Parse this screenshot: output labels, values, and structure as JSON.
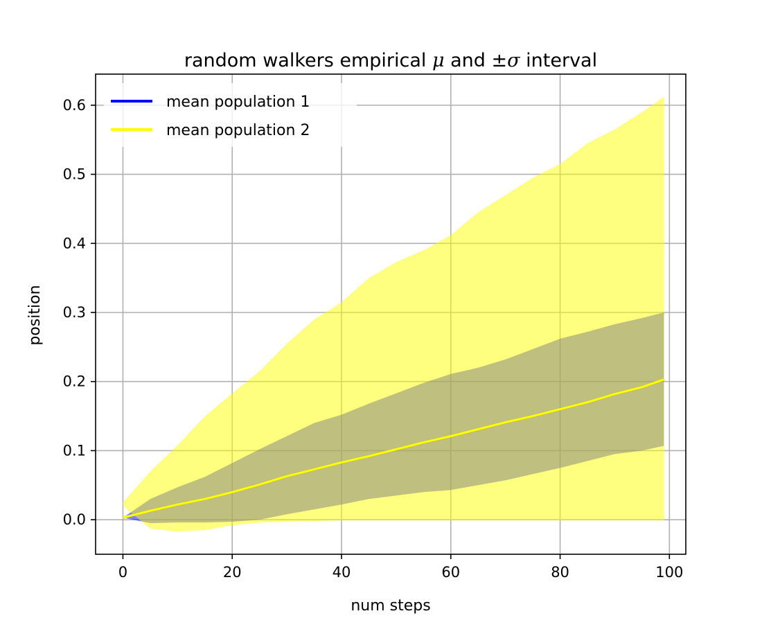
{
  "chart_data": {
    "type": "area",
    "title": {
      "prefix": "random walkers empirical ",
      "mu": "μ",
      "middle": " and ±",
      "sigma": "σ",
      "suffix": " interval"
    },
    "xlabel": "num steps",
    "ylabel": "position",
    "xlim": [
      -5,
      103
    ],
    "ylim": [
      -0.05,
      0.645
    ],
    "xticks": [
      0,
      20,
      40,
      60,
      80,
      100
    ],
    "xtick_labels": [
      "0",
      "20",
      "40",
      "60",
      "80",
      "100"
    ],
    "yticks": [
      0.0,
      0.1,
      0.2,
      0.3,
      0.4,
      0.5,
      0.6
    ],
    "ytick_labels": [
      "0.0",
      "0.1",
      "0.2",
      "0.3",
      "0.4",
      "0.5",
      "0.6"
    ],
    "grid": true,
    "legend_position": "upper-left",
    "x": [
      0,
      5,
      10,
      15,
      20,
      25,
      30,
      35,
      40,
      45,
      50,
      55,
      60,
      65,
      70,
      75,
      80,
      85,
      90,
      95,
      99
    ],
    "series": [
      {
        "name": "mean population 1",
        "color": "#0000ff",
        "band_color": "#8080ff",
        "mean": [
          0.003,
          0.013,
          0.022,
          0.03,
          0.04,
          0.051,
          0.063,
          0.073,
          0.083,
          0.092,
          0.102,
          0.112,
          0.121,
          0.131,
          0.141,
          0.15,
          0.16,
          0.17,
          0.182,
          0.192,
          0.203
        ],
        "lower": [
          0.003,
          -0.005,
          -0.004,
          -0.004,
          -0.003,
          0.0,
          0.008,
          0.015,
          0.022,
          0.03,
          0.035,
          0.04,
          0.043,
          0.05,
          0.057,
          0.066,
          0.075,
          0.085,
          0.095,
          0.1,
          0.107
        ],
        "upper": [
          0.003,
          0.03,
          0.047,
          0.062,
          0.082,
          0.102,
          0.121,
          0.14,
          0.152,
          0.168,
          0.183,
          0.198,
          0.211,
          0.22,
          0.232,
          0.247,
          0.262,
          0.272,
          0.283,
          0.292,
          0.3
        ]
      },
      {
        "name": "mean population 2",
        "color": "#ffff00",
        "band_color": "#ffff80",
        "mean": [
          0.003,
          0.013,
          0.022,
          0.03,
          0.04,
          0.051,
          0.063,
          0.073,
          0.083,
          0.092,
          0.102,
          0.112,
          0.121,
          0.131,
          0.141,
          0.15,
          0.16,
          0.17,
          0.182,
          0.192,
          0.203
        ],
        "lower": [
          0.02,
          -0.013,
          -0.017,
          -0.015,
          -0.008,
          -0.004,
          -0.003,
          -0.002,
          -0.001,
          -0.001,
          -0.001,
          -0.001,
          -0.001,
          -0.001,
          -0.001,
          -0.001,
          -0.001,
          -0.001,
          -0.001,
          -0.001,
          -0.001
        ],
        "upper": [
          0.025,
          0.07,
          0.108,
          0.15,
          0.183,
          0.215,
          0.255,
          0.29,
          0.315,
          0.35,
          0.373,
          0.39,
          0.412,
          0.445,
          0.47,
          0.495,
          0.515,
          0.545,
          0.565,
          0.59,
          0.612
        ]
      }
    ]
  }
}
